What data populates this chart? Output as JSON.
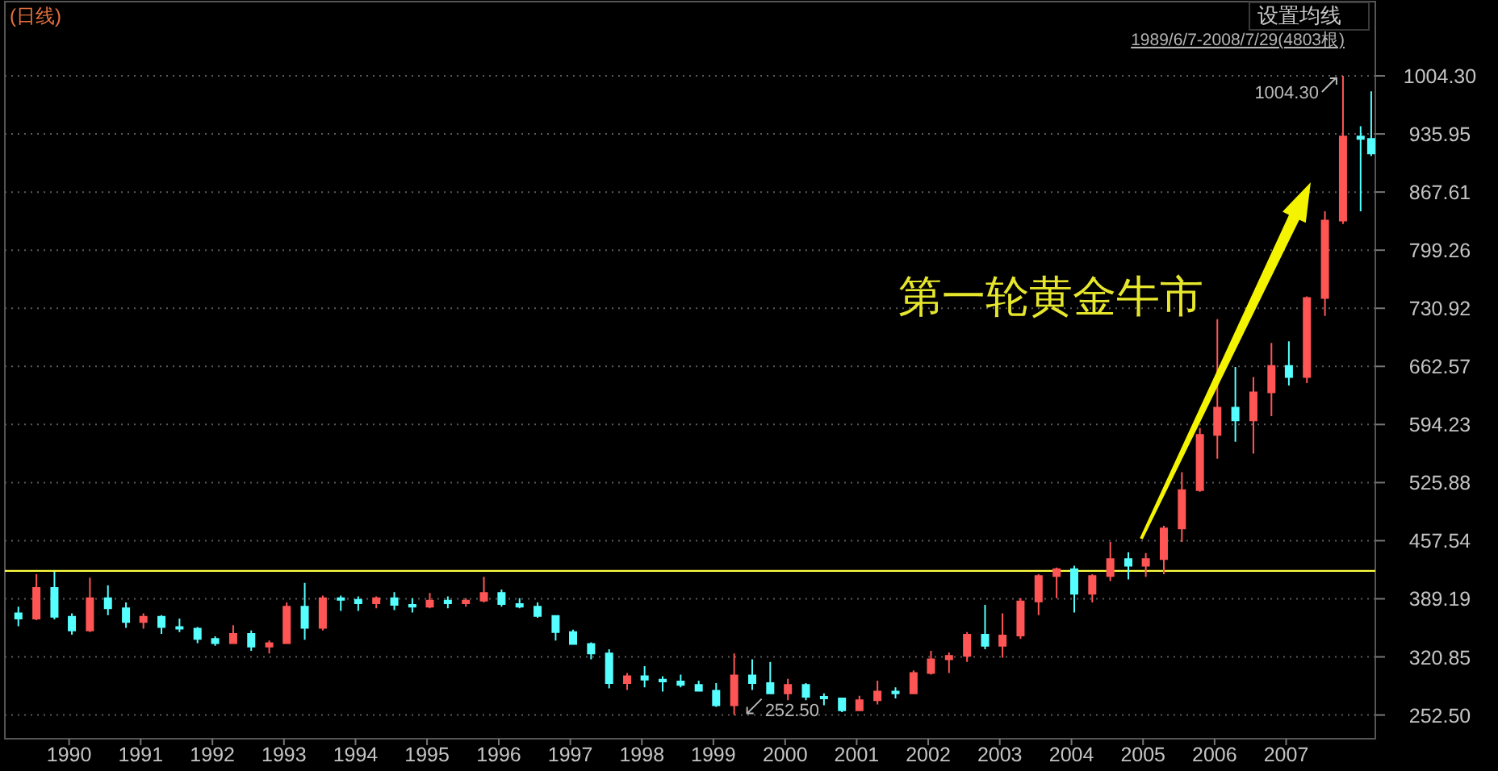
{
  "chart_data": {
    "type": "candlestick",
    "title": "(日线)",
    "subtitle": "1989/6/7-2008/7/29(4803根)",
    "x": [
      "1989-08-15",
      "1989-11-15",
      "1990-02-15",
      "1990-05-15",
      "1990-08-15",
      "1990-11-15",
      "1991-02-15",
      "1991-05-15",
      "1991-08-15",
      "1991-11-15",
      "1992-02-15",
      "1992-05-15",
      "1992-08-15",
      "1992-11-15",
      "1993-02-15",
      "1993-05-15",
      "1993-08-15",
      "1993-11-15",
      "1994-02-15",
      "1994-05-15",
      "1994-08-15",
      "1994-11-15",
      "1995-02-15",
      "1995-05-15",
      "1995-08-15",
      "1995-11-15",
      "1996-02-15",
      "1996-05-15",
      "1996-08-15",
      "1996-11-15",
      "1997-02-15",
      "1997-05-15",
      "1997-08-15",
      "1997-11-15",
      "1998-02-15",
      "1998-05-15",
      "1998-08-15",
      "1998-11-15",
      "1999-02-15",
      "1999-05-15",
      "1999-08-15",
      "1999-11-15",
      "2000-02-15",
      "2000-05-15",
      "2000-08-15",
      "2000-11-15",
      "2001-02-15",
      "2001-05-15",
      "2001-08-15",
      "2001-11-15",
      "2002-02-15",
      "2002-05-15",
      "2002-08-15",
      "2002-11-15",
      "2003-02-15",
      "2003-05-15",
      "2003-08-15",
      "2003-11-15",
      "2004-02-15",
      "2004-05-15",
      "2004-08-15",
      "2004-11-15",
      "2005-02-15",
      "2005-05-15",
      "2005-08-15",
      "2005-11-15",
      "2006-02-15",
      "2006-05-15",
      "2006-08-15",
      "2006-11-15",
      "2007-02-15",
      "2007-05-15",
      "2007-08-15",
      "2007-11-15",
      "2008-02-15",
      "2008-05-15",
      "2008-07-08"
    ],
    "ohlc": [
      [
        372,
        380,
        357,
        366
      ],
      [
        366,
        418,
        364,
        402
      ],
      [
        402,
        421,
        365,
        368
      ],
      [
        368,
        372,
        347,
        352
      ],
      [
        352,
        414,
        350,
        390
      ],
      [
        390,
        405,
        370,
        378
      ],
      [
        378,
        385,
        355,
        362
      ],
      [
        362,
        372,
        354,
        368
      ],
      [
        368,
        370,
        348,
        356
      ],
      [
        356,
        366,
        350,
        354
      ],
      [
        354,
        356,
        337,
        342
      ],
      [
        342,
        345,
        334,
        337
      ],
      [
        337,
        358,
        336,
        348
      ],
      [
        348,
        352,
        328,
        333
      ],
      [
        333,
        340,
        325,
        337
      ],
      [
        337,
        385,
        336,
        380
      ],
      [
        380,
        408,
        341,
        355
      ],
      [
        355,
        393,
        352,
        390
      ],
      [
        390,
        393,
        375,
        388
      ],
      [
        388,
        392,
        375,
        384
      ],
      [
        384,
        392,
        378,
        390
      ],
      [
        390,
        397,
        376,
        382
      ],
      [
        382,
        390,
        373,
        380
      ],
      [
        380,
        396,
        378,
        387
      ],
      [
        387,
        392,
        378,
        384
      ],
      [
        384,
        390,
        380,
        387
      ],
      [
        387,
        415,
        385,
        396
      ],
      [
        396,
        400,
        380,
        383
      ],
      [
        383,
        390,
        378,
        380
      ],
      [
        380,
        385,
        367,
        369
      ],
      [
        369,
        370,
        340,
        350
      ],
      [
        350,
        353,
        335,
        336
      ],
      [
        336,
        338,
        318,
        325
      ],
      [
        325,
        330,
        284,
        290
      ],
      [
        290,
        302,
        282,
        298
      ],
      [
        298,
        310,
        285,
        294
      ],
      [
        294,
        298,
        280,
        292
      ],
      [
        292,
        300,
        285,
        288
      ],
      [
        288,
        293,
        280,
        281
      ],
      [
        281,
        290,
        262,
        264
      ],
      [
        264,
        325,
        252.5,
        299
      ],
      [
        299,
        318,
        282,
        290
      ],
      [
        290,
        315,
        278,
        278
      ],
      [
        278,
        295,
        270,
        288
      ],
      [
        288,
        290,
        270,
        274
      ],
      [
        274,
        278,
        264,
        272
      ],
      [
        272,
        272,
        256,
        258
      ],
      [
        258,
        275,
        257,
        270
      ],
      [
        270,
        293,
        265,
        280
      ],
      [
        280,
        285,
        272,
        278
      ],
      [
        278,
        305,
        277,
        302
      ],
      [
        302,
        328,
        300,
        318
      ],
      [
        318,
        326,
        302,
        322
      ],
      [
        322,
        350,
        315,
        347
      ],
      [
        347,
        382,
        330,
        334
      ],
      [
        334,
        372,
        320,
        346
      ],
      [
        346,
        390,
        342,
        386
      ],
      [
        386,
        418,
        370,
        416
      ],
      [
        416,
        426,
        390,
        424
      ],
      [
        424,
        428,
        373,
        395
      ],
      [
        395,
        418,
        385,
        416
      ],
      [
        416,
        456,
        410,
        436
      ],
      [
        436,
        444,
        412,
        428
      ],
      [
        428,
        443,
        415,
        436
      ],
      [
        436,
        475,
        418,
        472
      ],
      [
        472,
        538,
        456,
        517
      ],
      [
        517,
        590,
        515,
        582
      ],
      [
        582,
        718,
        554,
        614
      ],
      [
        614,
        662,
        574,
        599
      ],
      [
        599,
        650,
        560,
        632
      ],
      [
        632,
        690,
        604,
        663
      ],
      [
        663,
        692,
        640,
        650
      ],
      [
        650,
        745,
        643,
        743
      ],
      [
        743,
        845,
        722,
        834
      ],
      [
        834,
        1004.3,
        830,
        933
      ],
      [
        933,
        945,
        845,
        930
      ],
      [
        930,
        986,
        910,
        913
      ]
    ],
    "colors": [
      "#55ffff",
      "#ff5555",
      "#55ffff",
      "#55ffff",
      "#ff5555",
      "#55ffff",
      "#55ffff",
      "#ff5555",
      "#55ffff",
      "#55ffff",
      "#55ffff",
      "#55ffff",
      "#ff5555",
      "#55ffff",
      "#ff5555",
      "#ff5555",
      "#55ffff",
      "#ff5555",
      "#55ffff",
      "#55ffff",
      "#ff5555",
      "#55ffff",
      "#55ffff",
      "#ff5555",
      "#55ffff",
      "#ff5555",
      "#ff5555",
      "#55ffff",
      "#55ffff",
      "#55ffff",
      "#55ffff",
      "#55ffff",
      "#55ffff",
      "#55ffff",
      "#ff5555",
      "#55ffff",
      "#55ffff",
      "#55ffff",
      "#55ffff",
      "#55ffff",
      "#ff5555",
      "#55ffff",
      "#55ffff",
      "#ff5555",
      "#55ffff",
      "#55ffff",
      "#55ffff",
      "#ff5555",
      "#ff5555",
      "#55ffff",
      "#ff5555",
      "#ff5555",
      "#ff5555",
      "#ff5555",
      "#55ffff",
      "#ff5555",
      "#ff5555",
      "#ff5555",
      "#ff5555",
      "#55ffff",
      "#ff5555",
      "#ff5555",
      "#55ffff",
      "#ff5555",
      "#ff5555",
      "#ff5555",
      "#ff5555",
      "#ff5555",
      "#55ffff",
      "#ff5555",
      "#ff5555",
      "#55ffff",
      "#ff5555",
      "#ff5555",
      "#ff5555",
      "#55ffff",
      "#55ffff"
    ],
    "xlim": [
      "1989-06-07",
      "2008-07-29"
    ],
    "xticks": [
      {
        "value": "1990-05-01",
        "label": "1990"
      },
      {
        "value": "1991-05-01",
        "label": "1991"
      },
      {
        "value": "1992-05-01",
        "label": "1992"
      },
      {
        "value": "1993-05-01",
        "label": "1993"
      },
      {
        "value": "1994-05-01",
        "label": "1994"
      },
      {
        "value": "1995-05-01",
        "label": "1995"
      },
      {
        "value": "1996-05-01",
        "label": "1996"
      },
      {
        "value": "1997-05-01",
        "label": "1997"
      },
      {
        "value": "1998-05-01",
        "label": "1998"
      },
      {
        "value": "1999-05-01",
        "label": "1999"
      },
      {
        "value": "2000-05-01",
        "label": "2000"
      },
      {
        "value": "2001-05-01",
        "label": "2001"
      },
      {
        "value": "2002-05-01",
        "label": "2002"
      },
      {
        "value": "2003-05-01",
        "label": "2003"
      },
      {
        "value": "2004-05-01",
        "label": "2004"
      },
      {
        "value": "2005-05-01",
        "label": "2005"
      },
      {
        "value": "2006-05-01",
        "label": "2006"
      },
      {
        "value": "2007-05-01",
        "label": "2007"
      }
    ],
    "ylim": [
      224.6,
      1091.6
    ],
    "yticks": [
      {
        "value": 252.5,
        "label": "252.50"
      },
      320.85,
      389.19,
      457.54,
      525.88,
      594.23,
      662.57,
      730.92,
      799.26,
      867.61,
      935.95,
      {
        "value": 1004.3,
        "label": "1004.30"
      }
    ],
    "grid": "y",
    "ref_lines": [
      {
        "axis": "y",
        "value": 422,
        "color": "#ffff40"
      }
    ],
    "annotations": [
      "设置均线",
      {
        "text": "1004.30",
        "x": "2008-02-15",
        "y": 1004.3
      },
      {
        "text": "252.50",
        "x": "1999-08-15",
        "y": 252.5
      },
      "第一轮黄金牛市"
    ]
  }
}
